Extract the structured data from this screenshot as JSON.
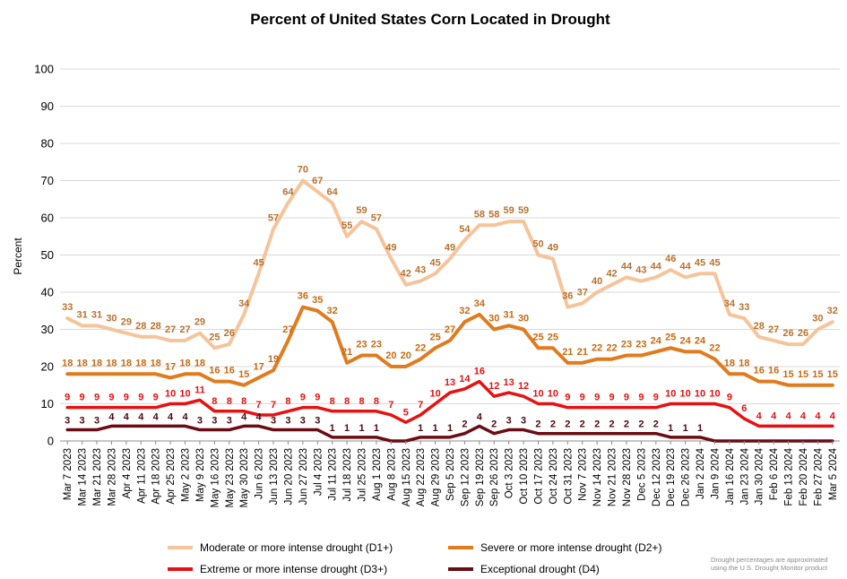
{
  "chart_data": {
    "type": "line",
    "title": "Percent of United States Corn Located in Drought",
    "ylabel": "Percent",
    "xlabel": "",
    "ylim": [
      0,
      100
    ],
    "yticks": [
      0,
      10,
      20,
      30,
      40,
      50,
      60,
      70,
      80,
      90,
      100
    ],
    "grid": true,
    "legend_position": "bottom",
    "x": [
      "Mar 7 2023",
      "Mar 14 2023",
      "Mar 21 2023",
      "Mar 28 2023",
      "Apr 4 2023",
      "Apr 11 2023",
      "Apr 18 2023",
      "Apr 25 2023",
      "May 2 2023",
      "May 9 2023",
      "May 16 2023",
      "May 23 2023",
      "May 30 2023",
      "Jun 6 2023",
      "Jun 13 2023",
      "Jun 20 2023",
      "Jun 27 2023",
      "Jul 4 2023",
      "Jul 11 2023",
      "Jul 18 2023",
      "Jul 25 2023",
      "Aug 1 2023",
      "Aug 8 2023",
      "Aug 15 2023",
      "Aug 22 2023",
      "Aug 29 2023",
      "Sep 5 2023",
      "Sep 12 2023",
      "Sep 19 2023",
      "Sep 26 2023",
      "Oct 3 2023",
      "Oct 10 2023",
      "Oct 17 2023",
      "Oct 24 2023",
      "Oct 31 2023",
      "Nov 7 2023",
      "Nov 14 2023",
      "Nov 21 2023",
      "Nov 28 2023",
      "Dec 5 2023",
      "Dec 12 2023",
      "Dec 19 2023",
      "Dec 26 2023",
      "Jan 2 2024",
      "Jan 9 2024",
      "Jan 16 2024",
      "Jan 23 2024",
      "Jan 30 2024",
      "Feb 6 2024",
      "Feb 13 2024",
      "Feb 20 2024",
      "Feb 27 2024",
      "Mar 5 2024"
    ],
    "xtick_labels": [
      "Mar 7 2023",
      "Mar 14 2023",
      "Mar 21 2023",
      "Mar 28 2023",
      "Apr 4 2023",
      "Apr 11 2023",
      "Apr 18 2023",
      "Apr 25 2023",
      "May 2 2023",
      "May 9 2023",
      "May 16 2023",
      "May 23 2023",
      "May 30 2023",
      "Jun 6 2023",
      "Jun 13 2023",
      "Jun 20 2023",
      "Jun 27 2023",
      "Jul 4 2023",
      "Jul 11 2023",
      "Jul 18 2023",
      "Jul 25 2023",
      "Aug 1 2023",
      "Aug 8 2023",
      "Aug 15 2023",
      "Aug 22 2023",
      "Aug 29 2023",
      "Sep 5 2023",
      "Sep 12 2023",
      "Sep 19 2023",
      "Sep 26 2023",
      "Oct 3 2023",
      "Oct 10 2023",
      "Oct 17 2023",
      "Oct 24 2023",
      "Oct 31 2023",
      "Nov 7 2023",
      "Nov 14 2023",
      "Nov 21 2023",
      "Nov 28 2023",
      "Dec 5 2023",
      "Dec 12 2023",
      "Dec 19 2023",
      "Dec 26 2023",
      "Jan 2 2024",
      "Jan 9 2024",
      "Jan 16 2024",
      "Jan 23 2024",
      "Jan 30 2024",
      "Feb 6 2024",
      "Feb 13 2024",
      "Feb 20 2024",
      "Feb 27 2024",
      "Mar 5 2024"
    ],
    "series": [
      {
        "name": "Moderate or more intense drought (D1+)",
        "color": "#f5c49b",
        "label_color": "#b8722f",
        "values": [
          33,
          31,
          31,
          30,
          29,
          28,
          28,
          27,
          27,
          29,
          25,
          26,
          34,
          45,
          57,
          64,
          70,
          67,
          64,
          55,
          59,
          57,
          49,
          42,
          43,
          45,
          49,
          54,
          58,
          58,
          59,
          59,
          50,
          49,
          36,
          37,
          40,
          42,
          44,
          43,
          44,
          46,
          44,
          45,
          45,
          34,
          33,
          28,
          27,
          26,
          26,
          30,
          32
        ]
      },
      {
        "name": "Severe or more intense drought (D2+)",
        "color": "#e07c1e",
        "label_color": "#c86a12",
        "values": [
          18,
          18,
          18,
          18,
          18,
          18,
          18,
          17,
          18,
          18,
          16,
          16,
          15,
          17,
          19,
          27,
          36,
          35,
          32,
          21,
          23,
          23,
          20,
          20,
          22,
          25,
          27,
          32,
          34,
          30,
          31,
          30,
          25,
          25,
          21,
          21,
          22,
          22,
          23,
          23,
          24,
          25,
          24,
          24,
          22,
          18,
          18,
          16,
          16,
          15,
          15,
          15,
          15
        ]
      },
      {
        "name": "Extreme or more intense drought (D3+)",
        "color": "#e81010",
        "label_color": "#e81010",
        "values": [
          9,
          9,
          9,
          9,
          9,
          9,
          9,
          10,
          10,
          11,
          8,
          8,
          8,
          7,
          7,
          8,
          9,
          9,
          8,
          8,
          8,
          8,
          7,
          5,
          7,
          10,
          13,
          14,
          16,
          12,
          13,
          12,
          10,
          10,
          9,
          9,
          9,
          9,
          9,
          9,
          9,
          10,
          10,
          10,
          10,
          9,
          6,
          4,
          4,
          4,
          4,
          4,
          4
        ]
      },
      {
        "name": "Exceptional drought (D4)",
        "color": "#6b0c14",
        "label_color": "#4a0a0e",
        "values": [
          3,
          3,
          3,
          4,
          4,
          4,
          4,
          4,
          4,
          3,
          3,
          3,
          4,
          4,
          3,
          3,
          3,
          3,
          1,
          1,
          1,
          1,
          null,
          null,
          1,
          1,
          1,
          2,
          4,
          2,
          3,
          3,
          2,
          2,
          2,
          2,
          2,
          2,
          2,
          2,
          2,
          1,
          1,
          1,
          null,
          null,
          null,
          null,
          null,
          null,
          null,
          null,
          null
        ]
      }
    ],
    "note_lines": [
      "Drought percentages are approximated",
      "using the U.S. Drought Monitor product"
    ]
  }
}
